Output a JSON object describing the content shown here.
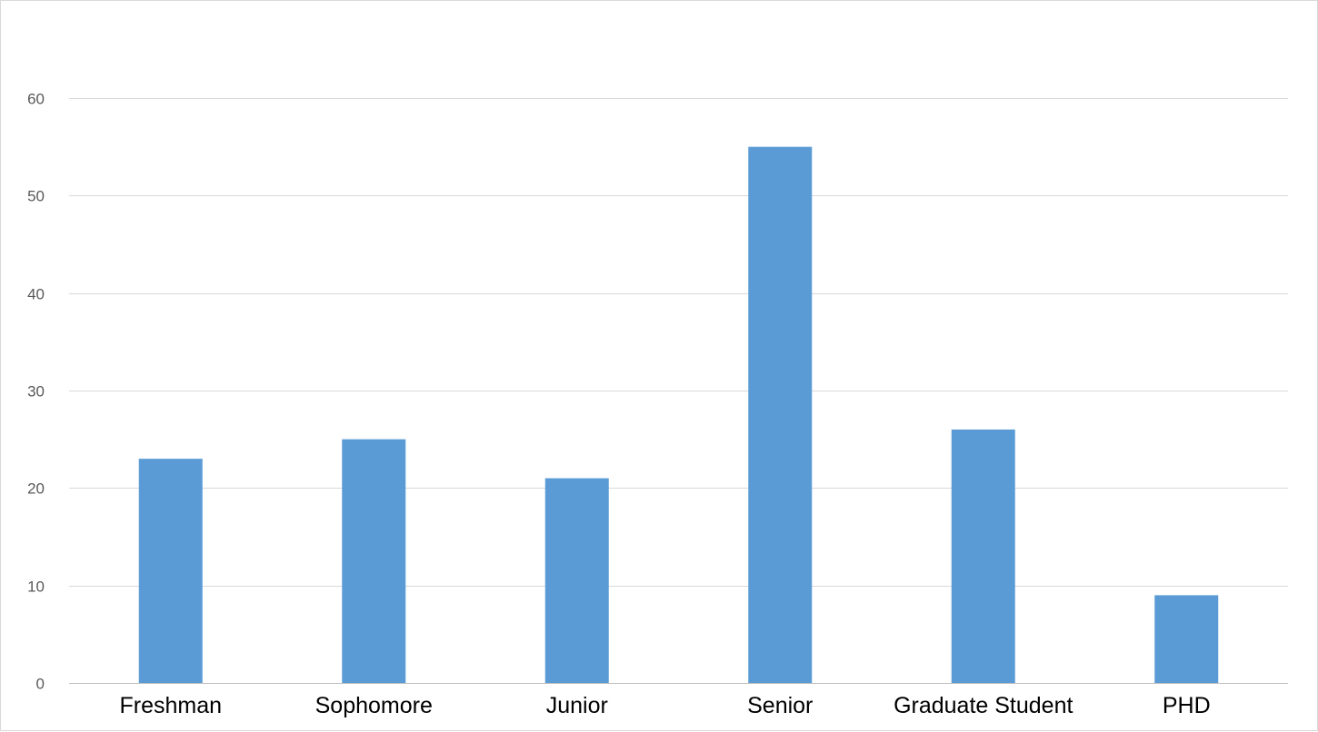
{
  "chart_data": {
    "type": "bar",
    "title": "",
    "xlabel": "",
    "ylabel": "",
    "categories": [
      "Freshman",
      "Sophomore",
      "Junior",
      "Senior",
      "Graduate Student",
      "PHD"
    ],
    "values": [
      23,
      25,
      21,
      55,
      26,
      9
    ],
    "ylim": [
      0,
      60
    ],
    "yticks": [
      0,
      10,
      20,
      30,
      40,
      50,
      60
    ],
    "grid": true,
    "legend": "none",
    "bar_color": "#5B9BD5"
  }
}
